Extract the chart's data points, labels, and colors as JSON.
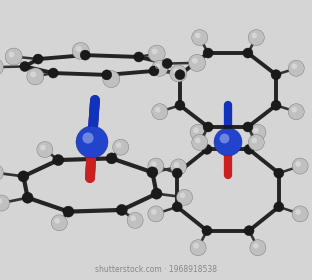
{
  "background_color": "#d5d5d5",
  "atom_color": "#2244cc",
  "atom_color2": "#3355dd",
  "carbon_color": "#1a1a1a",
  "hydrogen_color": "#c0c0c0",
  "rod_red": "#cc2020",
  "rod_blue": "#1133bb",
  "watermark_text": "shutterstock.com · 1968918538",
  "watermark_color": "#888888",
  "watermark_fontsize": 5.5,
  "fig_width": 3.12,
  "fig_height": 2.8,
  "dpi": 100
}
